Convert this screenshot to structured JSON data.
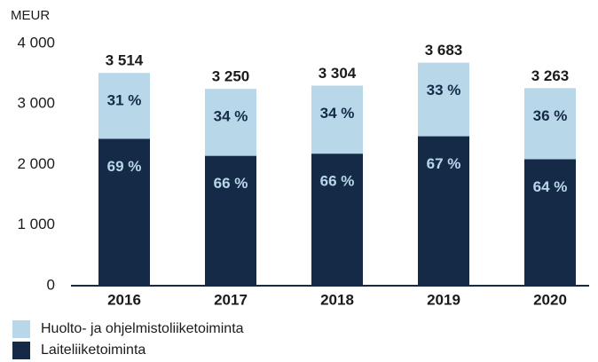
{
  "chart_data": {
    "type": "stacked_bar",
    "y_label": "MEUR",
    "categories": [
      "2016",
      "2017",
      "2018",
      "2019",
      "2020"
    ],
    "series": [
      {
        "name": "Laiteliiketoiminta",
        "color": "#152a47",
        "label_color": "#b8d8ea",
        "values": [
          2425,
          2145,
          2181,
          2468,
          2088
        ],
        "shares": [
          69,
          66,
          66,
          67,
          64
        ],
        "share_labels": [
          "69 %",
          "66 %",
          "66 %",
          "67 %",
          "64 %"
        ]
      },
      {
        "name": "Huolto- ja ohjelmistoliiketoiminta",
        "color": "#b8d8ea",
        "label_color": "#152a47",
        "values": [
          1089,
          1105,
          1123,
          1215,
          1175
        ],
        "shares": [
          31,
          34,
          34,
          33,
          36
        ],
        "share_labels": [
          "31 %",
          "34 %",
          "34 %",
          "33 %",
          "36 %"
        ]
      }
    ],
    "totals": [
      3514,
      3250,
      3304,
      3683,
      3263
    ],
    "total_labels": [
      "3 514",
      "3 250",
      "3 304",
      "3 683",
      "3 263"
    ],
    "ylim": [
      0,
      4000
    ],
    "yticks": [
      0,
      {
        "value": 1000,
        "label": "1 000"
      },
      {
        "value": 2000,
        "label": "2 000"
      },
      {
        "value": 3000,
        "label": "3 000"
      },
      {
        "value": 4000,
        "label": "4 000"
      }
    ],
    "grid": false
  }
}
